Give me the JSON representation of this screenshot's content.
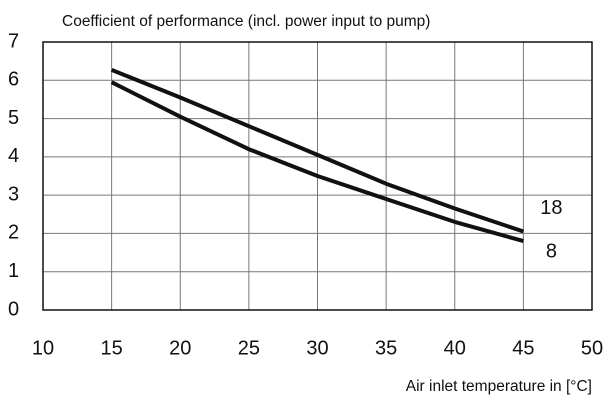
{
  "chart_data": {
    "type": "line",
    "title": "Coefficient of performance (incl. power input to pump)",
    "x_label": "Air inlet temperature in [°C]",
    "x": [
      15,
      20,
      25,
      30,
      35,
      40,
      45
    ],
    "series": [
      {
        "name": "18",
        "color": "#111111",
        "values": [
          6.27,
          5.55,
          4.8,
          4.05,
          3.3,
          2.65,
          2.05
        ]
      },
      {
        "name": "8",
        "color": "#111111",
        "values": [
          5.95,
          5.05,
          4.2,
          3.5,
          2.9,
          2.3,
          1.8
        ]
      }
    ],
    "xlim": [
      10,
      50
    ],
    "xticks": [
      10,
      15,
      20,
      25,
      30,
      35,
      40,
      45,
      50
    ],
    "ylim": [
      0,
      7
    ],
    "yticks": [
      0,
      1,
      2,
      3,
      4,
      5,
      6,
      7
    ],
    "grid": true
  }
}
